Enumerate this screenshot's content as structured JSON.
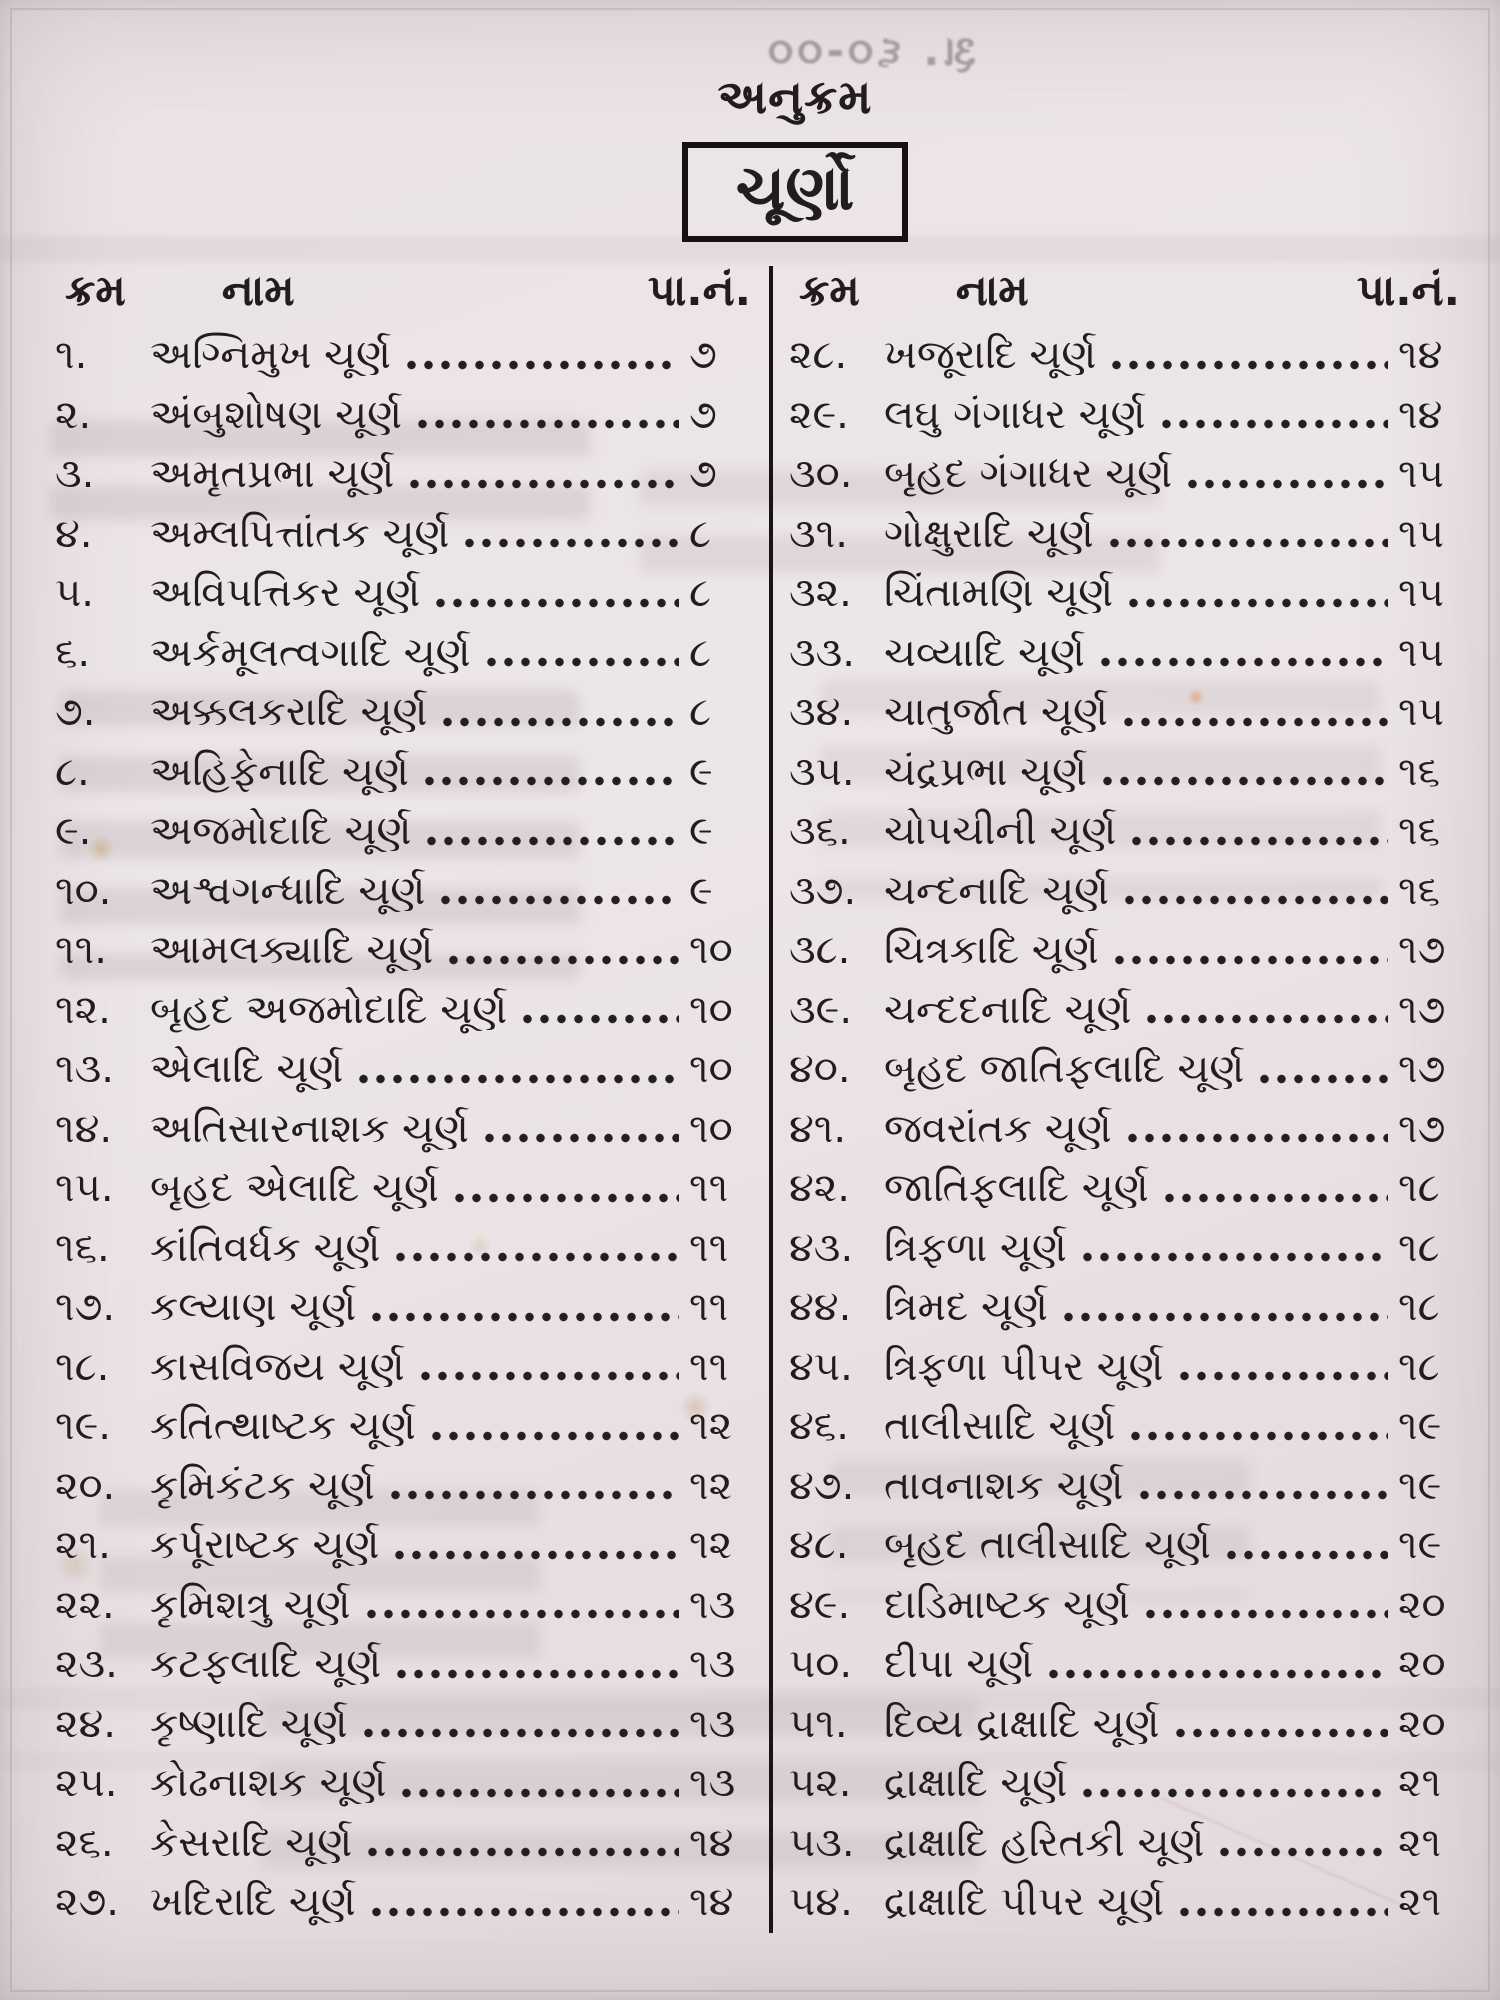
{
  "page": {
    "heading": "અનુક્રમ",
    "title": "ચૂર્ણો",
    "ghost_price": "રૂા. ૬૦-૦૦",
    "columns": [
      {
        "headers": {
          "serial": "ક્રમ",
          "name": "નામ",
          "page": "પા.નં."
        },
        "entries": [
          {
            "no": "૧.",
            "name": "અગ્નિમુખ ચૂર્ણ",
            "page": "૭"
          },
          {
            "no": "૨.",
            "name": "અંબુશોષણ ચૂર્ણ",
            "page": "૭"
          },
          {
            "no": "૩.",
            "name": "અમૃતપ્રભા ચૂર્ણ",
            "page": "૭"
          },
          {
            "no": "૪.",
            "name": "અમ્લપિત્તાંતક ચૂર્ણ",
            "page": "૮"
          },
          {
            "no": "૫.",
            "name": "અવિપત્તિકર ચૂર્ણ",
            "page": "૮"
          },
          {
            "no": "૬.",
            "name": "અર્કમૂલત્વગાદિ ચૂર્ણ",
            "page": "૮"
          },
          {
            "no": "૭.",
            "name": "અક્કલકરાદિ ચૂર્ણ",
            "page": "૮"
          },
          {
            "no": "૮.",
            "name": "અહિફેનાદિ ચૂર્ણ",
            "page": "૯"
          },
          {
            "no": "૯.",
            "name": "અજમોદાદિ ચૂર્ણ",
            "page": "૯"
          },
          {
            "no": "૧૦.",
            "name": "અશ્વગન્ધાદિ ચૂર્ણ",
            "page": "૯"
          },
          {
            "no": "૧૧.",
            "name": "આમલક્યાદિ ચૂર્ણ",
            "page": "૧૦"
          },
          {
            "no": "૧૨.",
            "name": "બૃહદ અજમોદાદિ ચૂર્ણ",
            "page": "૧૦"
          },
          {
            "no": "૧૩.",
            "name": "એલાદિ ચૂર્ણ",
            "page": "૧૦"
          },
          {
            "no": "૧૪.",
            "name": "અતિસારનાશક ચૂર્ણ",
            "page": "૧૦"
          },
          {
            "no": "૧૫.",
            "name": "બૃહદ એલાદિ ચૂર્ણ",
            "page": "૧૧"
          },
          {
            "no": "૧૬.",
            "name": "કાંતિવર્ધક ચૂર્ણ",
            "page": "૧૧"
          },
          {
            "no": "૧૭.",
            "name": "કલ્યાણ ચૂર્ણ",
            "page": "૧૧"
          },
          {
            "no": "૧૮.",
            "name": "કાસવિજય ચૂર્ણ",
            "page": "૧૧"
          },
          {
            "no": "૧૯.",
            "name": "કતિત્થાષ્ટક ચૂર્ણ",
            "page": "૧૨"
          },
          {
            "no": "૨૦.",
            "name": "કૃમિકંટક ચૂર્ણ",
            "page": "૧૨"
          },
          {
            "no": "૨૧.",
            "name": "કર્પૂરાષ્ટક ચૂર્ણ",
            "page": "૧૨"
          },
          {
            "no": "૨૨.",
            "name": "કૃમિશત્રુ ચૂર્ણ",
            "page": "૧૩"
          },
          {
            "no": "૨૩.",
            "name": "કટફલાદિ ચૂર્ણ",
            "page": "૧૩"
          },
          {
            "no": "૨૪.",
            "name": "કૃષ્ણાદિ ચૂર્ણ",
            "page": "૧૩"
          },
          {
            "no": "૨૫.",
            "name": "કોઢનાશક ચૂર્ણ",
            "page": "૧૩"
          },
          {
            "no": "૨૬.",
            "name": "કેસરાદિ ચૂર્ણ",
            "page": "૧૪"
          },
          {
            "no": "૨૭.",
            "name": "ખદિરાદિ ચૂર્ણ",
            "page": "૧૪"
          }
        ]
      },
      {
        "headers": {
          "serial": "ક્રમ",
          "name": "નામ",
          "page": "પા.નં."
        },
        "entries": [
          {
            "no": "૨૮.",
            "name": "ખજૂરાદિ ચૂર્ણ",
            "page": "૧૪"
          },
          {
            "no": "૨૯.",
            "name": "લઘુ ગંગાધર ચૂર્ણ",
            "page": "૧૪"
          },
          {
            "no": "૩૦.",
            "name": "બૃહદ ગંગાધર ચૂર્ણ",
            "page": "૧૫"
          },
          {
            "no": "૩૧.",
            "name": "ગોક્ષુરાદિ ચૂર્ણ",
            "page": "૧૫"
          },
          {
            "no": "૩૨.",
            "name": "ચિંતામણિ ચૂર્ણ",
            "page": "૧૫"
          },
          {
            "no": "૩૩.",
            "name": "ચવ્યાદિ ચૂર્ણ",
            "page": "૧૫"
          },
          {
            "no": "૩૪.",
            "name": "ચાતુર્જાત ચૂર્ણ",
            "page": "૧૫"
          },
          {
            "no": "૩૫.",
            "name": "ચંદ્રપ્રભા ચૂર્ણ",
            "page": "૧૬"
          },
          {
            "no": "૩૬.",
            "name": "ચોપચીની ચૂર્ણ",
            "page": "૧૬"
          },
          {
            "no": "૩૭.",
            "name": "ચન્દનાદિ ચૂર્ણ",
            "page": "૧૬"
          },
          {
            "no": "૩૮.",
            "name": "ચિત્રકાદિ ચૂર્ણ",
            "page": "૧૭"
          },
          {
            "no": "૩૯.",
            "name": "ચન્દદનાદિ ચૂર્ણ",
            "page": "૧૭"
          },
          {
            "no": "૪૦.",
            "name": "બૃહદ જાતિફલાદિ ચૂર્ણ",
            "page": "૧૭"
          },
          {
            "no": "૪૧.",
            "name": "જવરાંતક ચૂર્ણ",
            "page": "૧૭"
          },
          {
            "no": "૪૨.",
            "name": "જાતિફલાદિ ચૂર્ણ",
            "page": "૧૮"
          },
          {
            "no": "૪૩.",
            "name": "ત્રિફળા ચૂર્ણ",
            "page": "૧૮"
          },
          {
            "no": "૪૪.",
            "name": "ત્રિમદ ચૂર્ણ",
            "page": "૧૮"
          },
          {
            "no": "૪૫.",
            "name": "ત્રિફળા પીપર ચૂર્ણ",
            "page": "૧૮"
          },
          {
            "no": "૪૬.",
            "name": "તાલીસાદિ ચૂર્ણ",
            "page": "૧૯"
          },
          {
            "no": "૪૭.",
            "name": "તાવનાશક ચૂર્ણ",
            "page": "૧૯"
          },
          {
            "no": "૪૮.",
            "name": "બૃહદ તાલીસાદિ ચૂર્ણ",
            "page": "૧૯"
          },
          {
            "no": "૪૯.",
            "name": "દાડિમાષ્ટક ચૂર્ણ",
            "page": "૨૦"
          },
          {
            "no": "૫૦.",
            "name": "દીપા ચૂર્ણ",
            "page": "૨૦"
          },
          {
            "no": "૫૧.",
            "name": "દિવ્ય દ્રાક્ષાદિ ચૂર્ણ",
            "page": "૨૦"
          },
          {
            "no": "૫૨.",
            "name": "દ્રાક્ષાદિ ચૂર્ણ",
            "page": "૨૧"
          },
          {
            "no": "૫૩.",
            "name": "દ્રાક્ષાદિ હરિતકી ચૂર્ણ",
            "page": "૨૧"
          },
          {
            "no": "૫૪.",
            "name": "દ્રાક્ષાદિ પીપર ચૂર્ણ",
            "page": "૨૧"
          }
        ]
      }
    ],
    "colors": {
      "paper": "#ece4e7",
      "ink": "#231c1f"
    }
  }
}
